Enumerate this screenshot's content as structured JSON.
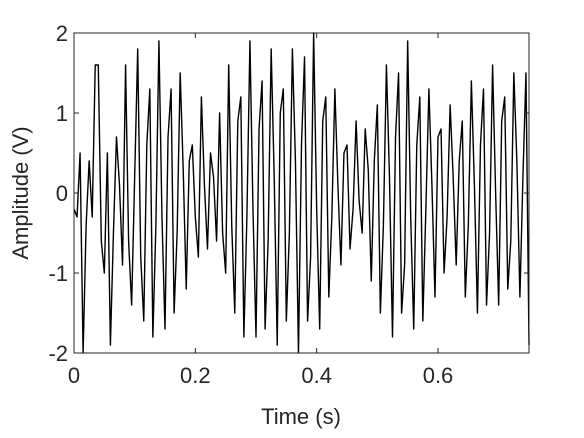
{
  "chart_data": {
    "type": "line",
    "xlabel": "Time (s)",
    "ylabel": "Amplitude (V)",
    "color": "#000000",
    "xlim": [
      0,
      0.75
    ],
    "xticks": [
      0,
      0.2,
      0.4,
      0.6
    ],
    "ylim": [
      -2,
      2
    ],
    "yticks": [
      -2,
      -1,
      0,
      1,
      2
    ],
    "x": [
      0,
      0.005,
      0.01,
      0.015,
      0.02,
      0.025,
      0.03,
      0.035,
      0.04,
      0.045,
      0.05,
      0.055,
      0.06,
      0.065,
      0.07,
      0.075,
      0.08,
      0.085,
      0.09,
      0.095,
      0.1,
      0.105,
      0.11,
      0.115,
      0.12,
      0.125,
      0.13,
      0.135,
      0.14,
      0.145,
      0.15,
      0.155,
      0.16,
      0.165,
      0.17,
      0.175,
      0.18,
      0.185,
      0.19,
      0.195,
      0.2,
      0.205,
      0.21,
      0.215,
      0.22,
      0.225,
      0.23,
      0.235,
      0.24,
      0.245,
      0.25,
      0.255,
      0.26,
      0.265,
      0.27,
      0.275,
      0.28,
      0.285,
      0.29,
      0.295,
      0.3,
      0.305,
      0.31,
      0.315,
      0.32,
      0.325,
      0.33,
      0.335,
      0.34,
      0.345,
      0.35,
      0.355,
      0.36,
      0.365,
      0.37,
      0.375,
      0.38,
      0.385,
      0.39,
      0.395,
      0.4,
      0.405,
      0.41,
      0.415,
      0.42,
      0.425,
      0.43,
      0.435,
      0.44,
      0.445,
      0.45,
      0.455,
      0.46,
      0.465,
      0.47,
      0.475,
      0.48,
      0.485,
      0.49,
      0.495,
      0.5,
      0.505,
      0.51,
      0.515,
      0.52,
      0.525,
      0.53,
      0.535,
      0.54,
      0.545,
      0.55,
      0.555,
      0.56,
      0.565,
      0.57,
      0.575,
      0.58,
      0.585,
      0.59,
      0.595,
      0.6,
      0.605,
      0.61,
      0.615,
      0.62,
      0.625,
      0.63,
      0.635,
      0.64,
      0.645,
      0.65,
      0.655,
      0.66,
      0.665,
      0.67,
      0.675,
      0.68,
      0.685,
      0.69,
      0.695,
      0.7,
      0.705,
      0.71,
      0.715,
      0.72,
      0.725,
      0.73,
      0.735,
      0.74,
      0.745,
      0.75
    ],
    "values": [
      -0.2,
      -0.3,
      0.5,
      -2.0,
      -0.4,
      0.4,
      -0.3,
      1.6,
      1.6,
      -0.6,
      -1.0,
      0.5,
      -1.9,
      -0.5,
      0.7,
      0.1,
      -0.9,
      1.6,
      -0.6,
      -1.4,
      0.2,
      1.8,
      -0.8,
      -1.6,
      0.6,
      1.3,
      -1.8,
      -0.4,
      1.9,
      -0.3,
      -1.7,
      0.7,
      1.3,
      -1.5,
      -0.5,
      1.5,
      0.3,
      -1.2,
      0.4,
      0.6,
      -0.3,
      -0.8,
      1.2,
      0.1,
      -0.7,
      0.5,
      0.2,
      -0.6,
      1.0,
      -0.5,
      -1.0,
      1.6,
      -0.4,
      -1.5,
      0.9,
      1.2,
      -1.8,
      -0.3,
      1.9,
      -0.2,
      -1.8,
      0.8,
      1.4,
      -1.7,
      -0.6,
      1.8,
      0.2,
      -1.9,
      1.0,
      1.3,
      -1.6,
      -0.5,
      1.8,
      0.4,
      -2.0,
      0.6,
      1.7,
      -1.6,
      -0.8,
      2.0,
      -0.2,
      -1.7,
      0.9,
      1.2,
      -1.3,
      -0.3,
      1.3,
      0.1,
      -0.9,
      0.5,
      0.6,
      -0.7,
      -0.2,
      0.9,
      -0.1,
      -0.5,
      0.8,
      0.3,
      -1.1,
      0.4,
      1.1,
      -1.5,
      -0.4,
      1.6,
      0.2,
      -1.8,
      0.7,
      1.5,
      -1.5,
      -0.9,
      1.9,
      -0.3,
      -1.7,
      0.6,
      1.2,
      -1.6,
      -0.2,
      1.3,
      0.1,
      -1.3,
      0.7,
      0.8,
      -1.0,
      -0.3,
      1.1,
      0.2,
      -0.9,
      0.4,
      0.9,
      -1.3,
      -0.4,
      1.4,
      0.1,
      -1.5,
      0.6,
      1.3,
      -1.4,
      -0.5,
      1.6,
      0.0,
      -1.4,
      0.9,
      1.2,
      -1.2,
      -0.6,
      1.5,
      0.4,
      -1.3,
      0.2,
      1.5,
      -1.9
    ]
  }
}
